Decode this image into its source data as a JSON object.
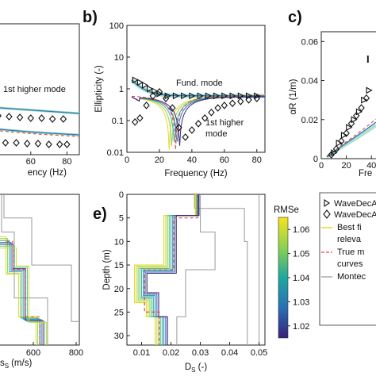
{
  "chart_data": [
    {
      "panel": "a",
      "type": "scatter",
      "xlabel": "Frequency (Hz)",
      "xlim": [
        0,
        85
      ],
      "ylim": [
        0,
        1
      ],
      "x_ticks": [
        "40",
        "60",
        "80"
      ],
      "annotations": [
        "1st higher mode"
      ],
      "series": [
        {
          "x": [
            18,
            24,
            30,
            36,
            42,
            48,
            54,
            60,
            66,
            72,
            78
          ],
          "values": [
            0.52,
            0.51,
            0.5,
            0.49,
            0.49,
            0.48,
            0.47,
            0.46,
            0.46,
            0.45,
            0.45
          ]
        },
        {
          "x": [
            10,
            16,
            22,
            28,
            34,
            40,
            46,
            52,
            58,
            64,
            70,
            76,
            80
          ],
          "values": [
            0.2,
            0.19,
            0.18,
            0.17,
            0.16,
            0.16,
            0.15,
            0.15,
            0.14,
            0.14,
            0.13,
            0.13,
            0.13
          ]
        }
      ]
    },
    {
      "panel": "b",
      "type": "line",
      "title_letter": "b)",
      "xlabel": "Frequency (Hz)",
      "ylabel": "Ellipticity (-)",
      "xlim": [
        0,
        85
      ],
      "ylim": [
        0.01,
        100
      ],
      "yscale": "log",
      "x_ticks": [
        "0",
        "20",
        "40",
        "60",
        "80"
      ],
      "y_ticks": [
        "0.01",
        "0.1",
        "1",
        "10",
        "100"
      ],
      "annotations": [
        "Fund. mode",
        "1st higher\nmode"
      ],
      "series": [
        {
          "marker": "triangle",
          "x": [
            5,
            8,
            11,
            14,
            17,
            20,
            25,
            30,
            35,
            40,
            45,
            50,
            55,
            60,
            65,
            70,
            75,
            80
          ],
          "values": [
            1.9,
            1.6,
            1.3,
            1.0,
            0.85,
            0.7,
            0.6,
            0.6,
            0.6,
            0.6,
            0.6,
            0.6,
            0.6,
            0.6,
            0.6,
            0.6,
            0.6,
            0.6
          ]
        },
        {
          "marker": "diamond",
          "x": [
            5,
            8,
            12,
            16,
            20,
            24,
            28,
            32,
            36,
            40,
            44,
            48,
            52,
            56,
            60,
            65,
            70,
            75,
            80
          ],
          "values": [
            0.09,
            0.12,
            0.3,
            0.6,
            0.8,
            0.5,
            0.25,
            0.06,
            0.03,
            0.05,
            0.08,
            0.12,
            0.18,
            0.25,
            0.3,
            0.35,
            0.4,
            0.45,
            0.5
          ]
        }
      ]
    },
    {
      "panel": "c",
      "type": "scatter",
      "title_letter": "c)",
      "xlabel": "Fre",
      "ylabel": "αR (1/m)",
      "xlim": [
        0,
        45
      ],
      "ylim": [
        0,
        0.065
      ],
      "x_ticks": [
        "0",
        "20",
        "40"
      ],
      "y_ticks": [
        "0",
        "0.02",
        "0.04",
        "0.06"
      ],
      "series": [
        {
          "marker": "triangle",
          "x": [
            10,
            14,
            18,
            22,
            26,
            30,
            34,
            38
          ],
          "values": [
            0.003,
            0.008,
            0.012,
            0.016,
            0.02,
            0.024,
            0.03,
            0.035
          ]
        },
        {
          "marker": "diamond",
          "x": [
            8,
            12,
            16,
            20,
            24,
            28,
            32,
            36
          ],
          "values": [
            0.002,
            0.005,
            0.009,
            0.013,
            0.018,
            0.022,
            0.026,
            0.031
          ]
        }
      ]
    },
    {
      "panel": "d",
      "type": "line",
      "xlabel": "(m/s)",
      "xlim": [
        200,
        800
      ],
      "ylim": [
        32,
        0
      ],
      "x_ticks": [
        "600",
        "800"
      ]
    },
    {
      "panel": "e",
      "type": "line",
      "title_letter": "e)",
      "xlabel": "Ds (-)",
      "ylabel": "Depth (m)",
      "xlim": [
        0.005,
        0.052
      ],
      "ylim": [
        32,
        0
      ],
      "x_ticks": [
        "0.01",
        "0.02",
        "0.03",
        "0.04",
        "0.05"
      ],
      "y_ticks": [
        "0",
        "5",
        "10",
        "15",
        "20",
        "25",
        "30"
      ],
      "colorbar": {
        "label": "RMSe",
        "range": [
          1.015,
          1.065
        ],
        "ticks": [
          "1.02",
          "1.03",
          "1.04",
          "1.05",
          "1.06"
        ]
      }
    }
  ],
  "legend": {
    "items": [
      {
        "marker": "triangle",
        "label": "WaveDecA"
      },
      {
        "marker": "diamond",
        "label": "WaveDecA"
      },
      {
        "marker": "yellow-line",
        "label": "Best fi\nreleva"
      },
      {
        "marker": "red-dashed",
        "label": "True m\ncurves"
      },
      {
        "marker": "gray-line",
        "label": "Montec"
      }
    ]
  },
  "colors": {
    "fund_mode": "#2b7bb9",
    "higher_mode": "#2fb3a6",
    "true_model": "#e8473a",
    "montecarlo": "#9a9a9a",
    "best_fit": "#e7d629"
  }
}
